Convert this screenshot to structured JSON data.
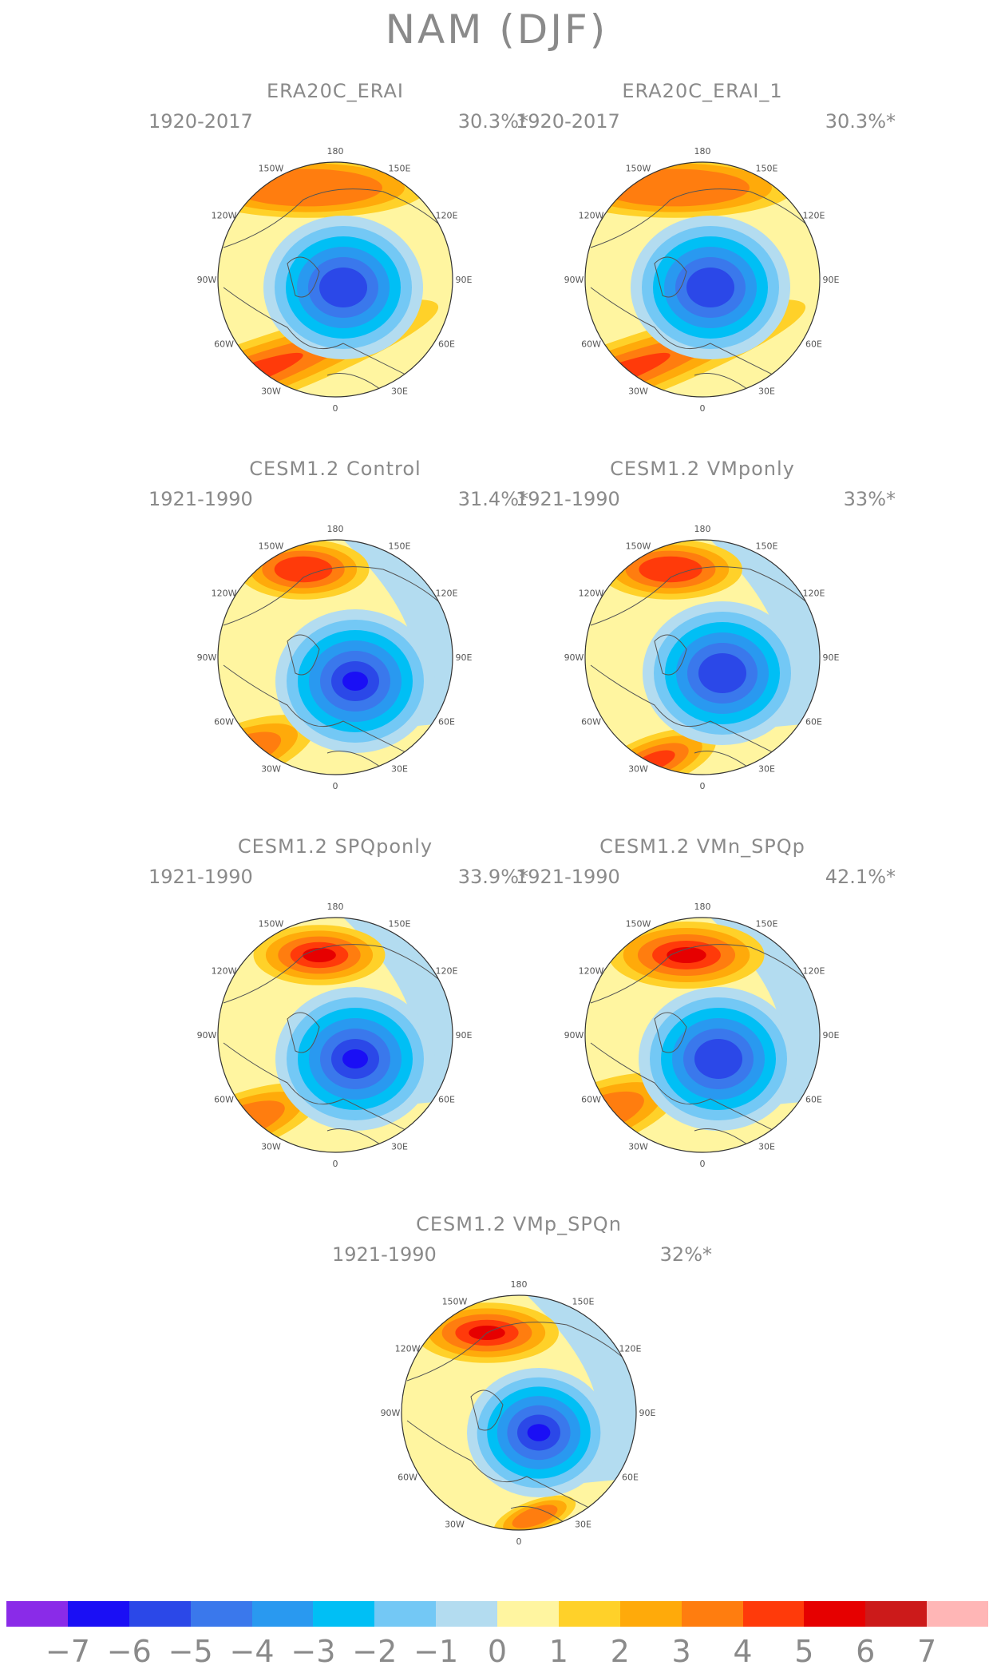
{
  "title": "NAM (DJF)",
  "panels": [
    {
      "title": "ERA20C_ERAI",
      "period": "1920-2017",
      "pct": "30.3%*",
      "style": "era"
    },
    {
      "title": "ERA20C_ERAI_1",
      "period": "1920-2017",
      "pct": "30.3%*",
      "style": "era"
    },
    {
      "title": "CESM1.2 Control",
      "period": "1921-1990",
      "pct": "31.4%*",
      "style": "control"
    },
    {
      "title": "CESM1.2 VMponly",
      "period": "1921-1990",
      "pct": "33%*",
      "style": "vmp"
    },
    {
      "title": "CESM1.2 SPQponly",
      "period": "1921-1990",
      "pct": "33.9%*",
      "style": "spq"
    },
    {
      "title": "CESM1.2 VMn_SPQp",
      "period": "1921-1990",
      "pct": "42.1%*",
      "style": "vmnspq"
    },
    {
      "title": "CESM1.2 VMp_SPQn",
      "period": "1921-1990",
      "pct": "32%*",
      "style": "vmpspqn"
    }
  ],
  "lon_labels": [
    "180",
    "150E",
    "120E",
    "90E",
    "60E",
    "30E",
    "0",
    "30W",
    "60W",
    "90W",
    "120W",
    "150W"
  ],
  "colorbar": {
    "colors": [
      "#8a2be8",
      "#1a0ff5",
      "#2b48e8",
      "#3a78ec",
      "#2999f0",
      "#00bff5",
      "#73c8f5",
      "#b3dcf0",
      "#fff5a0",
      "#ffd129",
      "#ffaa0a",
      "#ff7d0f",
      "#ff3a0a",
      "#e60000",
      "#cc1a1a",
      "#ffb6b6"
    ],
    "ticks": [
      "−7",
      "−6",
      "−5",
      "−4",
      "−3",
      "−2",
      "−1",
      "0",
      "1",
      "2",
      "3",
      "4",
      "5",
      "6",
      "7"
    ]
  }
}
